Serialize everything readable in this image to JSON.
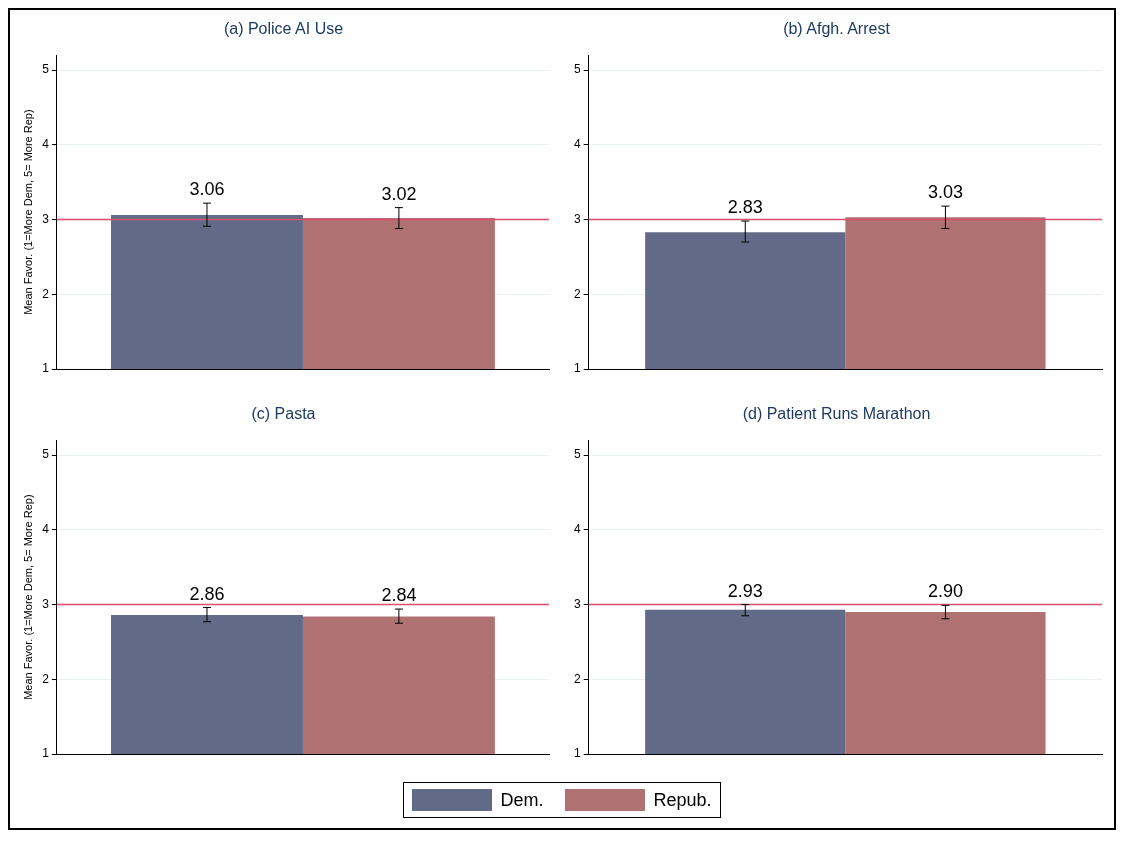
{
  "chart_data": [
    {
      "type": "bar",
      "title": "(a) Police AI Use",
      "ylabel": "Mean Favor. (1=More Dem, 5= More Rep)",
      "categories": [
        null
      ],
      "series": [
        {
          "name": "Dem.",
          "color": "#616b87",
          "values": [
            3.06
          ],
          "value_labels": [
            "3.06"
          ],
          "errors": [
            [
              2.91,
              3.22
            ]
          ]
        },
        {
          "name": "Repub.",
          "color": "#b07173",
          "values": [
            3.02
          ],
          "value_labels": [
            "3.02"
          ],
          "errors": [
            [
              2.88,
              3.16
            ]
          ]
        }
      ],
      "ylim": [
        1,
        5.2
      ],
      "yticks": [
        1,
        2,
        3,
        4,
        5
      ],
      "grid": "y",
      "tick_labels": "y",
      "legend": "bottom",
      "ref_lines": [
        {
          "axis": "y",
          "value": 3,
          "label": null,
          "color": "#d9506f"
        }
      ]
    },
    {
      "type": "bar",
      "title": "(b) Afgh. Arrest",
      "categories": [
        null
      ],
      "series": [
        {
          "name": "Dem.",
          "color": "#616b87",
          "values": [
            2.83
          ],
          "value_labels": [
            "2.83"
          ],
          "errors": [
            [
              2.7,
              2.98
            ]
          ]
        },
        {
          "name": "Repub.",
          "color": "#b07173",
          "values": [
            3.03
          ],
          "value_labels": [
            "3.03"
          ],
          "errors": [
            [
              2.88,
              3.18
            ]
          ]
        }
      ],
      "ylim": [
        1,
        5.2
      ],
      "yticks": [
        1,
        2,
        3,
        4,
        5
      ],
      "grid": "y",
      "tick_labels": "y",
      "legend": "bottom",
      "ref_lines": [
        {
          "axis": "y",
          "value": 3,
          "label": null,
          "color": "#d9506f"
        }
      ]
    },
    {
      "type": "bar",
      "title": "(c) Pasta",
      "ylabel": "Mean Favor. (1=More Dem, 5= More Rep)",
      "categories": [
        null
      ],
      "series": [
        {
          "name": "Dem.",
          "color": "#616b87",
          "values": [
            2.86
          ],
          "value_labels": [
            "2.86"
          ],
          "errors": [
            [
              2.77,
              2.96
            ]
          ]
        },
        {
          "name": "Repub.",
          "color": "#b07173",
          "values": [
            2.84
          ],
          "value_labels": [
            "2.84"
          ],
          "errors": [
            [
              2.75,
              2.94
            ]
          ]
        }
      ],
      "ylim": [
        1,
        5.2
      ],
      "yticks": [
        1,
        2,
        3,
        4,
        5
      ],
      "grid": "y",
      "tick_labels": "y",
      "legend": "bottom",
      "ref_lines": [
        {
          "axis": "y",
          "value": 3,
          "label": null,
          "color": "#d9506f"
        }
      ]
    },
    {
      "type": "bar",
      "title": "(d) Patient Runs Marathon",
      "categories": [
        null
      ],
      "series": [
        {
          "name": "Dem.",
          "color": "#616b87",
          "values": [
            2.93
          ],
          "value_labels": [
            "2.93"
          ],
          "errors": [
            [
              2.85,
              3.0
            ]
          ]
        },
        {
          "name": "Repub.",
          "color": "#b07173",
          "values": [
            2.9
          ],
          "value_labels": [
            "2.90"
          ],
          "errors": [
            [
              2.81,
              2.99
            ]
          ]
        }
      ],
      "ylim": [
        1,
        5.2
      ],
      "yticks": [
        1,
        2,
        3,
        4,
        5
      ],
      "grid": "y",
      "tick_labels": "y",
      "legend": "bottom",
      "ref_lines": [
        {
          "axis": "y",
          "value": 3,
          "label": null,
          "color": "#d9506f"
        }
      ]
    }
  ]
}
